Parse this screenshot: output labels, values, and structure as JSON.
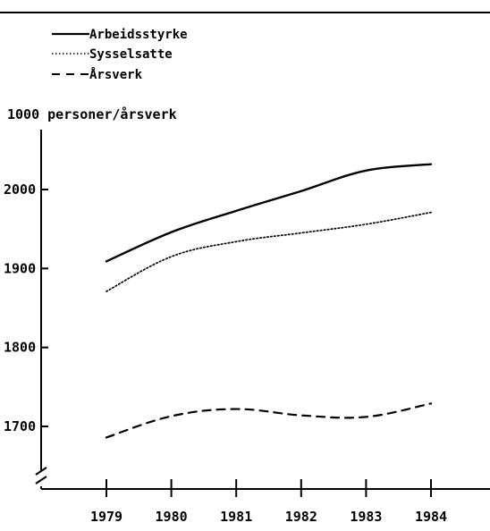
{
  "chart_data": {
    "type": "line",
    "title": "",
    "ylabel": "1000 personer/årsverk",
    "xlabel": "",
    "categories": [
      "1979",
      "1980",
      "1981",
      "1982",
      "1983",
      "1984"
    ],
    "yticks": [
      "1700",
      "1800",
      "1900",
      "2000"
    ],
    "ylim": [
      1620,
      2085
    ],
    "y_axis_break": true,
    "grid": false,
    "legend_position": "top-left",
    "series": [
      {
        "name": "Arbeidsstyrke",
        "style": "solid",
        "values": [
          1909,
          1946,
          1973,
          1998,
          2024,
          2032
        ]
      },
      {
        "name": "Sysselsatte",
        "style": "dotted",
        "values": [
          1871,
          1915,
          1934,
          1945,
          1956,
          1971
        ]
      },
      {
        "name": "Årsverk",
        "style": "dashed",
        "values": [
          1686,
          1713,
          1722,
          1714,
          1712,
          1729
        ]
      }
    ]
  }
}
